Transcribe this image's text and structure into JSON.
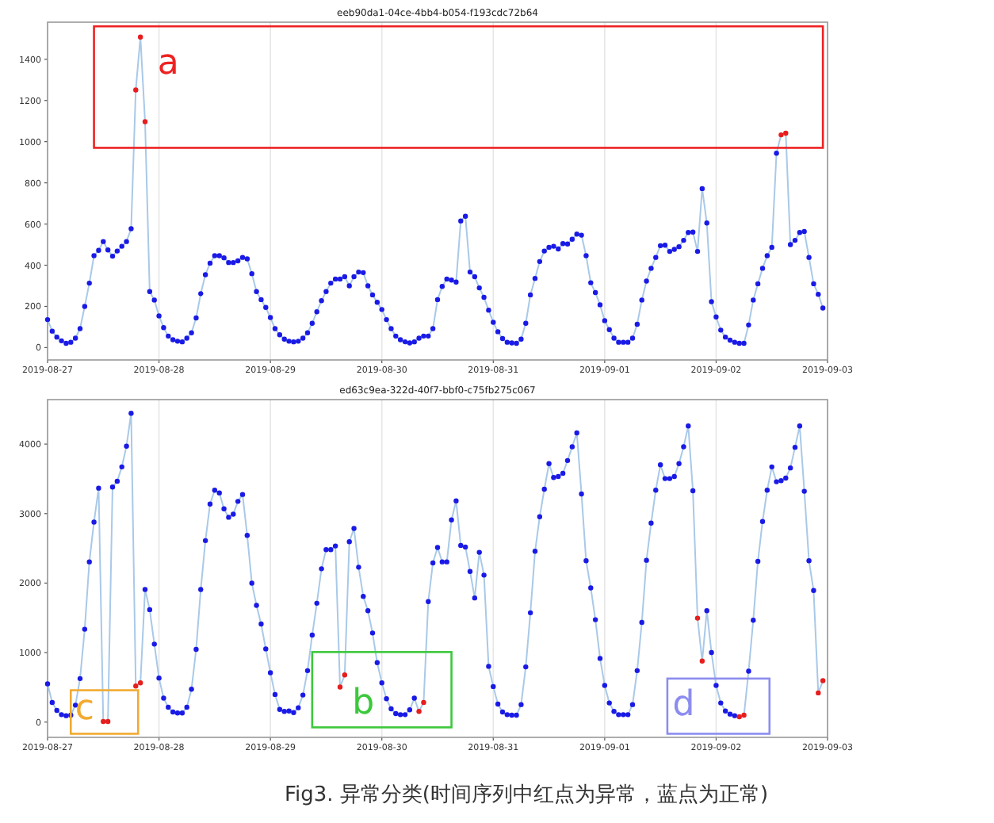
{
  "chart_data": [
    {
      "type": "line",
      "title": "eeb90da1-04ce-4bb4-b054-f193cdc72b64",
      "xlim": [
        "2019-08-27",
        "2019-09-03"
      ],
      "xticks": [
        "2019-08-27",
        "2019-08-28",
        "2019-08-29",
        "2019-08-30",
        "2019-08-31",
        "2019-09-01",
        "2019-09-02",
        "2019-09-03"
      ],
      "ylim": [
        -60,
        1580
      ],
      "yticks": [
        0,
        200,
        400,
        600,
        800,
        1000,
        1200,
        1400
      ],
      "grid": "x",
      "x": [
        "2019-08-27T00:00",
        "2019-08-27T01:00",
        "2019-08-27T02:00",
        "2019-08-27T03:00",
        "2019-08-27T04:00",
        "2019-08-27T05:00",
        "2019-08-27T06:00",
        "2019-08-27T07:00",
        "2019-08-27T08:00",
        "2019-08-27T09:00",
        "2019-08-27T10:00",
        "2019-08-27T11:00",
        "2019-08-27T12:00",
        "2019-08-27T13:00",
        "2019-08-27T14:00",
        "2019-08-27T15:00",
        "2019-08-27T16:00",
        "2019-08-27T17:00",
        "2019-08-27T18:00",
        "2019-08-27T19:00",
        "2019-08-27T20:00",
        "2019-08-27T21:00",
        "2019-08-27T22:00",
        "2019-08-27T23:00",
        "2019-08-28T00:00",
        "2019-08-28T01:00",
        "2019-08-28T02:00",
        "2019-08-28T03:00",
        "2019-08-28T04:00",
        "2019-08-28T05:00",
        "2019-08-28T06:00",
        "2019-08-28T07:00",
        "2019-08-28T08:00",
        "2019-08-28T09:00",
        "2019-08-28T10:00",
        "2019-08-28T11:00",
        "2019-08-28T12:00",
        "2019-08-28T13:00",
        "2019-08-28T14:00",
        "2019-08-28T15:00",
        "2019-08-28T16:00",
        "2019-08-28T17:00",
        "2019-08-28T18:00",
        "2019-08-28T19:00",
        "2019-08-28T20:00",
        "2019-08-28T21:00",
        "2019-08-28T22:00",
        "2019-08-28T23:00",
        "2019-08-29T00:00",
        "2019-08-29T01:00",
        "2019-08-29T02:00",
        "2019-08-29T03:00",
        "2019-08-29T04:00",
        "2019-08-29T05:00",
        "2019-08-29T06:00",
        "2019-08-29T07:00",
        "2019-08-29T08:00",
        "2019-08-29T09:00",
        "2019-08-29T10:00",
        "2019-08-29T11:00",
        "2019-08-29T12:00",
        "2019-08-29T13:00",
        "2019-08-29T14:00",
        "2019-08-29T15:00",
        "2019-08-29T16:00",
        "2019-08-29T17:00",
        "2019-08-29T18:00",
        "2019-08-29T19:00",
        "2019-08-29T20:00",
        "2019-08-29T21:00",
        "2019-08-29T22:00",
        "2019-08-29T23:00",
        "2019-08-30T00:00",
        "2019-08-30T01:00",
        "2019-08-30T02:00",
        "2019-08-30T03:00",
        "2019-08-30T04:00",
        "2019-08-30T05:00",
        "2019-08-30T06:00",
        "2019-08-30T07:00",
        "2019-08-30T08:00",
        "2019-08-30T09:00",
        "2019-08-30T10:00",
        "2019-08-30T11:00",
        "2019-08-30T12:00",
        "2019-08-30T13:00",
        "2019-08-30T14:00",
        "2019-08-30T15:00",
        "2019-08-30T16:00",
        "2019-08-30T17:00",
        "2019-08-30T18:00",
        "2019-08-30T19:00",
        "2019-08-30T20:00",
        "2019-08-30T21:00",
        "2019-08-30T22:00",
        "2019-08-30T23:00",
        "2019-08-31T00:00",
        "2019-08-31T01:00",
        "2019-08-31T02:00",
        "2019-08-31T03:00",
        "2019-08-31T04:00",
        "2019-08-31T05:00",
        "2019-08-31T06:00",
        "2019-08-31T07:00",
        "2019-08-31T08:00",
        "2019-08-31T09:00",
        "2019-08-31T10:00",
        "2019-08-31T11:00",
        "2019-08-31T12:00",
        "2019-08-31T13:00",
        "2019-08-31T14:00",
        "2019-08-31T15:00",
        "2019-08-31T16:00",
        "2019-08-31T17:00",
        "2019-08-31T18:00",
        "2019-08-31T19:00",
        "2019-08-31T20:00",
        "2019-08-31T21:00",
        "2019-08-31T22:00",
        "2019-08-31T23:00",
        "2019-09-01T00:00",
        "2019-09-01T01:00",
        "2019-09-01T02:00",
        "2019-09-01T03:00",
        "2019-09-01T04:00",
        "2019-09-01T05:00",
        "2019-09-01T06:00",
        "2019-09-01T07:00",
        "2019-09-01T08:00",
        "2019-09-01T09:00",
        "2019-09-01T10:00",
        "2019-09-01T11:00",
        "2019-09-01T12:00",
        "2019-09-01T13:00",
        "2019-09-01T14:00",
        "2019-09-01T15:00",
        "2019-09-01T16:00",
        "2019-09-01T17:00",
        "2019-09-01T18:00",
        "2019-09-01T19:00",
        "2019-09-01T20:00",
        "2019-09-01T21:00",
        "2019-09-01T22:00",
        "2019-09-01T23:00",
        "2019-09-02T00:00",
        "2019-09-02T01:00",
        "2019-09-02T02:00",
        "2019-09-02T03:00",
        "2019-09-02T04:00",
        "2019-09-02T05:00",
        "2019-09-02T06:00",
        "2019-09-02T07:00",
        "2019-09-02T08:00",
        "2019-09-02T09:00",
        "2019-09-02T10:00",
        "2019-09-02T11:00",
        "2019-09-02T12:00",
        "2019-09-02T13:00",
        "2019-09-02T14:00",
        "2019-09-02T15:00",
        "2019-09-02T16:00",
        "2019-09-02T17:00",
        "2019-09-02T18:00",
        "2019-09-02T19:00",
        "2019-09-02T20:00",
        "2019-09-02T21:00",
        "2019-09-02T22:00",
        "2019-09-02T23:00"
      ],
      "series": [
        {
          "color": "#a9c9e8",
          "values": [
            136,
            80,
            51,
            33,
            21,
            26,
            46,
            92,
            200,
            313,
            446,
            472,
            515,
            474,
            444,
            469,
            492,
            515,
            577,
            1251,
            1508,
            1097,
            272,
            231,
            154,
            97,
            56,
            38,
            31,
            28,
            46,
            72,
            144,
            262,
            354,
            410,
            446,
            446,
            436,
            413,
            413,
            421,
            438,
            431,
            359,
            272,
            233,
            195,
            146,
            92,
            62,
            41,
            31,
            28,
            31,
            46,
            72,
            118,
            174,
            228,
            272,
            313,
            333,
            333,
            344,
            300,
            344,
            367,
            364,
            300,
            256,
            220,
            185,
            136,
            92,
            56,
            38,
            28,
            23,
            28,
            46,
            56,
            56,
            92,
            233,
            297,
            333,
            328,
            318,
            615,
            638,
            367,
            344,
            290,
            244,
            182,
            123,
            77,
            44,
            26,
            23,
            21,
            41,
            118,
            256,
            336,
            418,
            469,
            487,
            492,
            479,
            505,
            503,
            526,
            551,
            546,
            446,
            315,
            267,
            208,
            131,
            87,
            46,
            26,
            26,
            26,
            46,
            113,
            231,
            323,
            385,
            438,
            495,
            497,
            467,
            477,
            490,
            521,
            559,
            561,
            467,
            772,
            605,
            223,
            149,
            85,
            51,
            36,
            26,
            21,
            21,
            110,
            231,
            310,
            385,
            446,
            487,
            944,
            1033,
            1041,
            500,
            521,
            559,
            564,
            438,
            310,
            259,
            192
          ]
        },
        {
          "type": "scatter",
          "color": "#1a1ae6",
          "marker": "circle",
          "values": [
            136,
            80,
            51,
            33,
            21,
            26,
            46,
            92,
            200,
            313,
            446,
            472,
            515,
            474,
            444,
            469,
            492,
            515,
            577,
            null,
            null,
            null,
            272,
            231,
            154,
            97,
            56,
            38,
            31,
            28,
            46,
            72,
            144,
            262,
            354,
            410,
            446,
            446,
            436,
            413,
            413,
            421,
            438,
            431,
            359,
            272,
            233,
            195,
            146,
            92,
            62,
            41,
            31,
            28,
            31,
            46,
            72,
            118,
            174,
            228,
            272,
            313,
            333,
            333,
            344,
            300,
            344,
            367,
            364,
            300,
            256,
            220,
            185,
            136,
            92,
            56,
            38,
            28,
            23,
            28,
            46,
            56,
            56,
            92,
            233,
            297,
            333,
            328,
            318,
            615,
            638,
            367,
            344,
            290,
            244,
            182,
            123,
            77,
            44,
            26,
            23,
            21,
            41,
            118,
            256,
            336,
            418,
            469,
            487,
            492,
            479,
            505,
            503,
            526,
            551,
            546,
            446,
            315,
            267,
            208,
            131,
            87,
            46,
            26,
            26,
            26,
            46,
            113,
            231,
            323,
            385,
            438,
            495,
            497,
            467,
            477,
            490,
            521,
            559,
            561,
            467,
            772,
            605,
            223,
            149,
            85,
            51,
            36,
            26,
            21,
            21,
            110,
            231,
            310,
            385,
            446,
            487,
            944,
            null,
            null,
            500,
            521,
            559,
            564,
            438,
            310,
            259,
            192
          ]
        },
        {
          "type": "scatter",
          "color": "#e61e1e",
          "marker": "circle",
          "x": [
            "2019-08-27T19:00",
            "2019-08-27T20:00",
            "2019-08-27T21:00",
            "2019-09-02T14:00",
            "2019-09-02T15:00"
          ],
          "values": [
            1251,
            1508,
            1097,
            1033,
            1041
          ]
        }
      ],
      "annotations": [
        "a"
      ]
    },
    {
      "type": "line",
      "title": "ed63c9ea-322d-40f7-bbf0-c75fb275c067",
      "xlim": [
        "2019-08-27",
        "2019-09-03"
      ],
      "xticks": [
        "2019-08-27",
        "2019-08-28",
        "2019-08-29",
        "2019-08-30",
        "2019-08-31",
        "2019-09-01",
        "2019-09-02",
        "2019-09-03"
      ],
      "ylim": [
        -220,
        4640
      ],
      "yticks": [
        0,
        1000,
        2000,
        3000,
        4000
      ],
      "grid": "x",
      "x": [
        "2019-08-27T00:00",
        "2019-08-27T01:00",
        "2019-08-27T02:00",
        "2019-08-27T03:00",
        "2019-08-27T04:00",
        "2019-08-27T05:00",
        "2019-08-27T06:00",
        "2019-08-27T07:00",
        "2019-08-27T08:00",
        "2019-08-27T09:00",
        "2019-08-27T10:00",
        "2019-08-27T11:00",
        "2019-08-27T12:00",
        "2019-08-27T13:00",
        "2019-08-27T14:00",
        "2019-08-27T15:00",
        "2019-08-27T16:00",
        "2019-08-27T17:00",
        "2019-08-27T18:00",
        "2019-08-27T19:00",
        "2019-08-27T20:00",
        "2019-08-27T21:00",
        "2019-08-27T22:00",
        "2019-08-27T23:00",
        "2019-08-28T00:00",
        "2019-08-28T01:00",
        "2019-08-28T02:00",
        "2019-08-28T03:00",
        "2019-08-28T04:00",
        "2019-08-28T05:00",
        "2019-08-28T06:00",
        "2019-08-28T07:00",
        "2019-08-28T08:00",
        "2019-08-28T09:00",
        "2019-08-28T10:00",
        "2019-08-28T11:00",
        "2019-08-28T12:00",
        "2019-08-28T13:00",
        "2019-08-28T14:00",
        "2019-08-28T15:00",
        "2019-08-28T16:00",
        "2019-08-28T17:00",
        "2019-08-28T18:00",
        "2019-08-28T19:00",
        "2019-08-28T20:00",
        "2019-08-28T21:00",
        "2019-08-28T22:00",
        "2019-08-28T23:00",
        "2019-08-29T00:00",
        "2019-08-29T01:00",
        "2019-08-29T02:00",
        "2019-08-29T03:00",
        "2019-08-29T04:00",
        "2019-08-29T05:00",
        "2019-08-29T06:00",
        "2019-08-29T07:00",
        "2019-08-29T08:00",
        "2019-08-29T09:00",
        "2019-08-29T10:00",
        "2019-08-29T11:00",
        "2019-08-29T12:00",
        "2019-08-29T13:00",
        "2019-08-29T14:00",
        "2019-08-29T15:00",
        "2019-08-29T16:00",
        "2019-08-29T17:00",
        "2019-08-29T18:00",
        "2019-08-29T19:00",
        "2019-08-29T20:00",
        "2019-08-29T21:00",
        "2019-08-29T22:00",
        "2019-08-29T23:00",
        "2019-08-30T00:00",
        "2019-08-30T01:00",
        "2019-08-30T02:00",
        "2019-08-30T03:00",
        "2019-08-30T04:00",
        "2019-08-30T05:00",
        "2019-08-30T06:00",
        "2019-08-30T07:00",
        "2019-08-30T08:00",
        "2019-08-30T09:00",
        "2019-08-30T10:00",
        "2019-08-30T11:00",
        "2019-08-30T12:00",
        "2019-08-30T13:00",
        "2019-08-30T14:00",
        "2019-08-30T15:00",
        "2019-08-30T16:00",
        "2019-08-30T17:00",
        "2019-08-30T18:00",
        "2019-08-30T19:00",
        "2019-08-30T20:00",
        "2019-08-30T21:00",
        "2019-08-30T22:00",
        "2019-08-30T23:00",
        "2019-08-31T00:00",
        "2019-08-31T01:00",
        "2019-08-31T02:00",
        "2019-08-31T03:00",
        "2019-08-31T04:00",
        "2019-08-31T05:00",
        "2019-08-31T06:00",
        "2019-08-31T07:00",
        "2019-08-31T08:00",
        "2019-08-31T09:00",
        "2019-08-31T10:00",
        "2019-08-31T11:00",
        "2019-08-31T12:00",
        "2019-08-31T13:00",
        "2019-08-31T14:00",
        "2019-08-31T15:00",
        "2019-08-31T16:00",
        "2019-08-31T17:00",
        "2019-08-31T18:00",
        "2019-08-31T19:00",
        "2019-08-31T20:00",
        "2019-08-31T21:00",
        "2019-08-31T22:00",
        "2019-08-31T23:00",
        "2019-09-01T00:00",
        "2019-09-01T01:00",
        "2019-09-01T02:00",
        "2019-09-01T03:00",
        "2019-09-01T04:00",
        "2019-09-01T05:00",
        "2019-09-01T06:00",
        "2019-09-01T07:00",
        "2019-09-01T08:00",
        "2019-09-01T09:00",
        "2019-09-01T10:00",
        "2019-09-01T11:00",
        "2019-09-01T12:00",
        "2019-09-01T13:00",
        "2019-09-01T14:00",
        "2019-09-01T15:00",
        "2019-09-01T16:00",
        "2019-09-01T17:00",
        "2019-09-01T18:00",
        "2019-09-01T19:00",
        "2019-09-01T20:00",
        "2019-09-01T21:00",
        "2019-09-01T22:00",
        "2019-09-01T23:00",
        "2019-09-02T00:00",
        "2019-09-02T01:00",
        "2019-09-02T02:00",
        "2019-09-02T03:00",
        "2019-09-02T04:00",
        "2019-09-02T05:00",
        "2019-09-02T06:00",
        "2019-09-02T07:00",
        "2019-09-02T08:00",
        "2019-09-02T09:00",
        "2019-09-02T10:00",
        "2019-09-02T11:00",
        "2019-09-02T12:00",
        "2019-09-02T13:00",
        "2019-09-02T14:00",
        "2019-09-02T15:00",
        "2019-09-02T16:00",
        "2019-09-02T17:00",
        "2019-09-02T18:00",
        "2019-09-02T19:00",
        "2019-09-02T20:00",
        "2019-09-02T21:00",
        "2019-09-02T22:00",
        "2019-09-02T23:00"
      ],
      "series": [
        {
          "color": "#a9c9e8",
          "values": [
            550,
            282,
            168,
            107,
            92,
            99,
            244,
            626,
            1336,
            2305,
            2878,
            3366,
            8,
            8,
            3382,
            3466,
            3672,
            3970,
            4443,
            519,
            565,
            1908,
            1618,
            1122,
            634,
            344,
            214,
            145,
            130,
            130,
            214,
            473,
            1046,
            1908,
            2611,
            3137,
            3336,
            3298,
            3069,
            2947,
            2992,
            3176,
            3275,
            2687,
            1999,
            1679,
            1412,
            1053,
            710,
            397,
            183,
            153,
            160,
            137,
            206,
            389,
            740,
            1252,
            1710,
            2206,
            2481,
            2481,
            2534,
            504,
            679,
            2595,
            2786,
            2229,
            1809,
            1603,
            1282,
            855,
            565,
            336,
            191,
            122,
            107,
            107,
            176,
            344,
            153,
            282,
            1733,
            2290,
            2512,
            2305,
            2305,
            2909,
            3183,
            2542,
            2519,
            2168,
            1786,
            2443,
            2115,
            802,
            511,
            260,
            145,
            107,
            99,
            99,
            252,
            794,
            1573,
            2458,
            2954,
            3351,
            3718,
            3519,
            3534,
            3580,
            3763,
            3962,
            4160,
            3283,
            2321,
            1931,
            1473,
            916,
            527,
            275,
            153,
            107,
            107,
            107,
            252,
            740,
            1435,
            2328,
            2863,
            3336,
            3702,
            3504,
            3504,
            3534,
            3718,
            3962,
            4260,
            3328,
            1496,
            878,
            1603,
            1000,
            527,
            275,
            160,
            115,
            92,
            76,
            99,
            733,
            1466,
            2313,
            2886,
            3336,
            3672,
            3458,
            3473,
            3511,
            3657,
            3954,
            4260,
            3321,
            2321,
            1893,
            420,
            595
          ]
        },
        {
          "type": "scatter",
          "color": "#1a1ae6",
          "marker": "circle",
          "values": [
            550,
            282,
            168,
            107,
            92,
            99,
            244,
            626,
            1336,
            2305,
            2878,
            3366,
            null,
            null,
            3382,
            3466,
            3672,
            3970,
            4443,
            null,
            null,
            1908,
            1618,
            1122,
            634,
            344,
            214,
            145,
            130,
            130,
            214,
            473,
            1046,
            1908,
            2611,
            3137,
            3336,
            3298,
            3069,
            2947,
            2992,
            3176,
            3275,
            2687,
            1999,
            1679,
            1412,
            1053,
            710,
            397,
            183,
            153,
            160,
            137,
            206,
            389,
            740,
            1252,
            1710,
            2206,
            2481,
            2481,
            2534,
            null,
            null,
            2595,
            2786,
            2229,
            1809,
            1603,
            1282,
            855,
            565,
            336,
            191,
            122,
            107,
            107,
            176,
            344,
            null,
            null,
            1733,
            2290,
            2512,
            2305,
            2305,
            2909,
            3183,
            2542,
            2519,
            2168,
            1786,
            2443,
            2115,
            802,
            511,
            260,
            145,
            107,
            99,
            99,
            252,
            794,
            1573,
            2458,
            2954,
            3351,
            3718,
            3519,
            3534,
            3580,
            3763,
            3962,
            4160,
            3283,
            2321,
            1931,
            1473,
            916,
            527,
            275,
            153,
            107,
            107,
            107,
            252,
            740,
            1435,
            2328,
            2863,
            3336,
            3702,
            3504,
            3504,
            3534,
            3718,
            3962,
            4260,
            3328,
            null,
            null,
            1603,
            1000,
            527,
            275,
            160,
            115,
            92,
            null,
            null,
            733,
            1466,
            2313,
            2886,
            3336,
            3672,
            3458,
            3473,
            3511,
            3657,
            3954,
            4260,
            3321,
            2321,
            1893,
            null,
            null
          ]
        },
        {
          "type": "scatter",
          "color": "#e61e1e",
          "marker": "circle",
          "x": [
            "2019-08-27T12:00",
            "2019-08-27T13:00",
            "2019-08-27T19:00",
            "2019-08-27T20:00",
            "2019-08-29T15:00",
            "2019-08-29T16:00",
            "2019-08-30T08:00",
            "2019-08-30T09:00",
            "2019-09-01T20:00",
            "2019-09-01T21:00",
            "2019-09-02T05:00",
            "2019-09-02T06:00",
            "2019-09-02T22:00",
            "2019-09-02T23:00"
          ],
          "values": [
            8,
            8,
            519,
            565,
            504,
            679,
            153,
            282,
            1496,
            878,
            76,
            99,
            420,
            595
          ]
        }
      ],
      "annotations": [
        "c",
        "b",
        "d",
        "Fig3. 异常分类(时间序列中红点为异常，蓝点为正常)"
      ]
    }
  ]
}
